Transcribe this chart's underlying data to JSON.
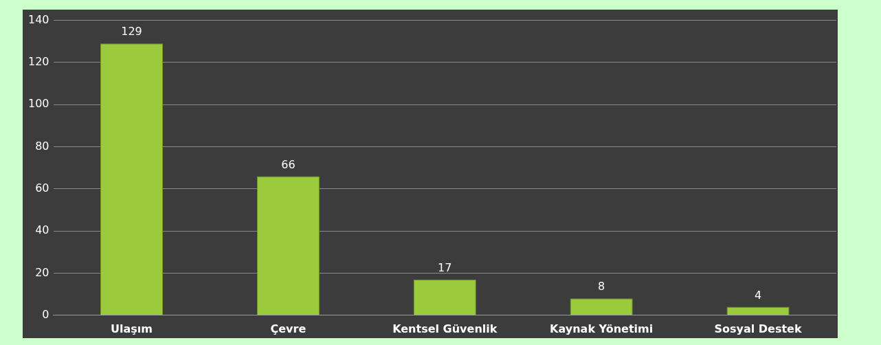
{
  "chart_data": {
    "type": "bar",
    "categories": [
      "Ulaşım",
      "Çevre",
      "Kentsel Güvenlik",
      "Kaynak Yönetimi",
      "Sosyal Destek"
    ],
    "values": [
      129,
      66,
      17,
      8,
      4
    ],
    "color": "#9bcb3c",
    "ylim": [
      0,
      140
    ],
    "yticks": [
      0,
      20,
      40,
      60,
      80,
      100,
      120,
      140
    ],
    "grid": "y",
    "data_labels": true,
    "legend": false
  }
}
